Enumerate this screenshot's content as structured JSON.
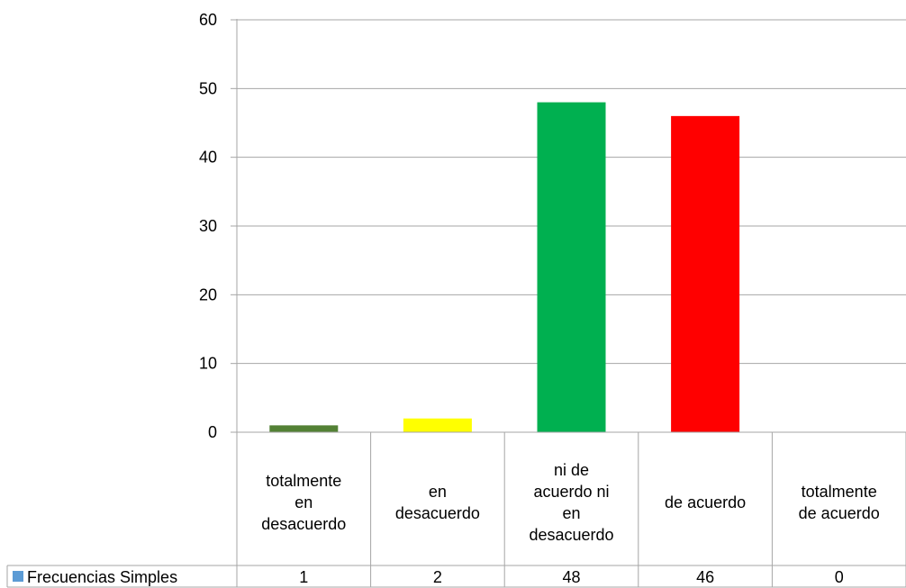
{
  "chart_data": {
    "type": "bar",
    "categories": [
      [
        "totalmente",
        "en",
        "desacuerdo"
      ],
      [
        "en",
        "desacuerdo"
      ],
      [
        "ni de",
        "acuerdo ni",
        "en",
        "desacuerdo"
      ],
      [
        "de acuerdo"
      ],
      [
        "totalmente",
        "de acuerdo"
      ]
    ],
    "series": [
      {
        "name": "Frecuencias Simples",
        "values": [
          1,
          2,
          48,
          46,
          0
        ],
        "value_labels": [
          "1",
          "2",
          "48",
          "46",
          "0"
        ],
        "legend_color": "#5b9bd5"
      }
    ],
    "bar_colors": [
      "#538135",
      "#ffff00",
      "#00b050",
      "#ff0000",
      "#ff0000"
    ],
    "y_ticks": [
      "0",
      "10",
      "20",
      "30",
      "40",
      "50",
      "60"
    ],
    "ylim": [
      0,
      60
    ],
    "grid": true,
    "data_table": true,
    "title": "",
    "xlabel": "",
    "ylabel": ""
  }
}
